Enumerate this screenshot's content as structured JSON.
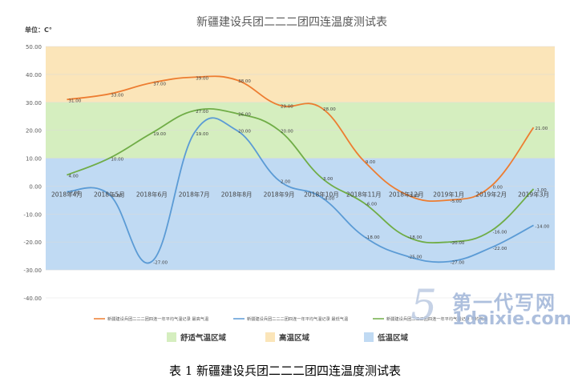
{
  "caption": "表 1 新疆建设兵团二二二团四连温度测试表",
  "watermark": {
    "cn": "第一代写网",
    "url": "1daixie.com",
    "mark": "5"
  },
  "chart_data": {
    "type": "line",
    "title": "新疆建设兵团二二二团四连温度测试表",
    "unit_label": "单位：C°",
    "ylim": [
      -40,
      50
    ],
    "yticks": [
      "50.00",
      "40.00",
      "30.00",
      "20.00",
      "10.00",
      "0.00",
      "-10.00",
      "-20.00",
      "-30.00",
      "-40.00"
    ],
    "categories": [
      "2018年4月",
      "2018年5月",
      "2018年6月",
      "2018年7月",
      "2018年8月",
      "2018年9月",
      "2018年10月",
      "2018年11月",
      "2018年12月",
      "2019年1月",
      "2019年2月",
      "2019年3月"
    ],
    "bands": [
      {
        "name": "高温区域",
        "from": 30,
        "to": 50,
        "color": "#fbe5b9"
      },
      {
        "name": "舒适气温区域",
        "from": 10,
        "to": 30,
        "color": "#d5eebf"
      },
      {
        "name": "低温区域",
        "from": -30,
        "to": 10,
        "color": "#c0daf3"
      }
    ],
    "series": [
      {
        "name": "新疆建设兵团二二二团四连一年平均气温记录 最高气温",
        "color": "#ed7d31",
        "values": [
          31,
          33,
          37,
          39,
          38,
          29,
          28,
          9,
          -3,
          -5,
          0,
          21
        ],
        "labels": [
          "31.00",
          "33.00",
          "37.00",
          "39.00",
          "38.00",
          "29.00",
          "28.00",
          "9.00",
          "-3.00",
          "-5.00",
          "0.00",
          "21.00"
        ]
      },
      {
        "name": "新疆建设兵团二二二团四连一年平均气温记录 最低气温",
        "color": "#5b9bd5",
        "values": [
          -2,
          -3,
          -27,
          19,
          20,
          2,
          -4,
          -18,
          -25,
          -27,
          -22,
          -14
        ],
        "labels": [
          "-2.00",
          "-3.00",
          "-27.00",
          "19.00",
          "20.00",
          "2.00",
          "-4.00",
          "-18.00",
          "-25.00",
          "-27.00",
          "-22.00",
          "-14.00"
        ]
      },
      {
        "name": "新疆建设兵团二二二团四连一年平均气温记录 平均气温",
        "color": "#70ad47",
        "values": [
          4,
          10,
          19,
          27,
          26,
          20,
          3,
          -6,
          -18,
          -20,
          -16,
          -1
        ],
        "labels": [
          "4.00",
          "10.00",
          "19.00",
          "27.00",
          "26.00",
          "20.00",
          "3.00",
          "-6.00",
          "-18.00",
          "-20.00",
          "-16.00",
          "-1.00"
        ]
      }
    ],
    "legend_position": "bottom"
  }
}
